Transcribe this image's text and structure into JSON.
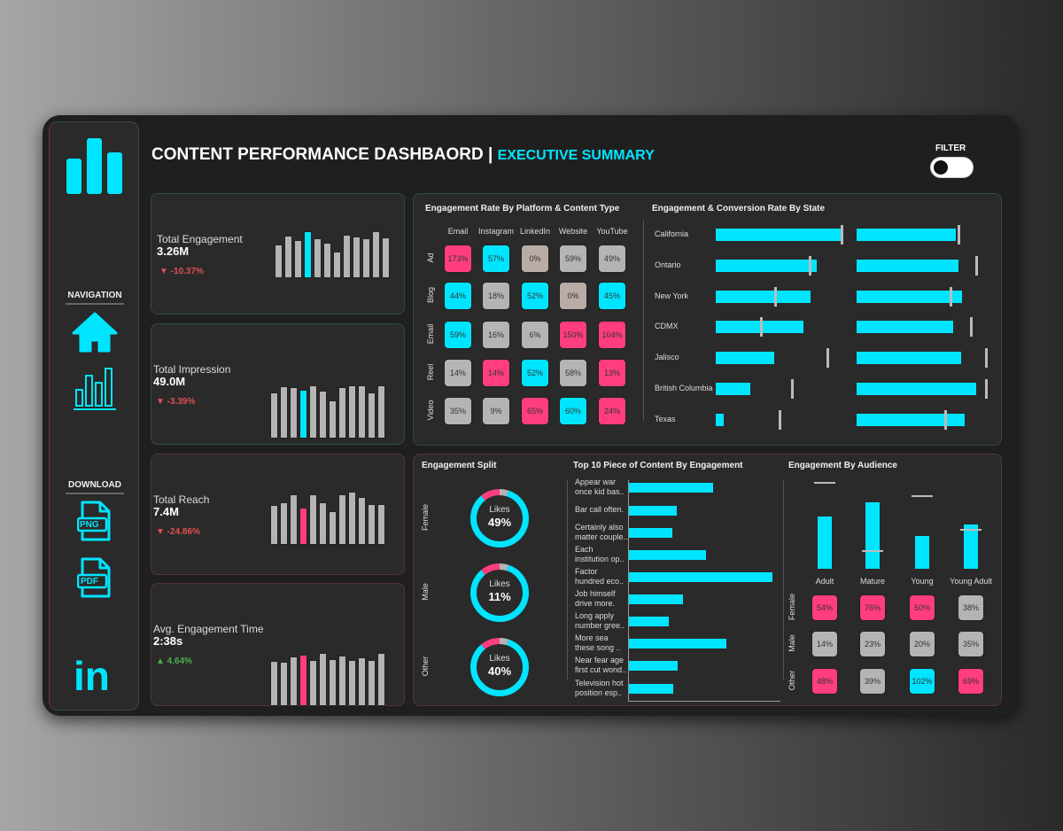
{
  "header": {
    "title": "CONTENT PERFORMANCE DASHBAORD |",
    "subtitle": "EXECUTIVE SUMMARY",
    "filter_label": "FILTER",
    "filter_on": false
  },
  "colors": {
    "accent": "#00e5ff",
    "pink": "#ff3d7f",
    "gray": "#b4b4b4",
    "taupe": "#b9aca6",
    "negative": "#e05050",
    "positive": "#4caf50"
  },
  "sidebar": {
    "logo": "bar-chart-logo-icon",
    "navigation_label": "NAVIGATION",
    "nav_items": [
      {
        "icon": "home-icon"
      },
      {
        "icon": "bar-chart-icon"
      }
    ],
    "download_label": "DOWNLOAD",
    "downloads": [
      {
        "icon": "png-file-icon",
        "label": "PNG"
      },
      {
        "icon": "pdf-file-icon",
        "label": "PDF"
      }
    ],
    "social": {
      "icon": "linkedin-icon",
      "label": "in"
    }
  },
  "kpis": [
    {
      "label": "Total Engagement",
      "value": "3.26M",
      "delta": "▼ -10.37%",
      "trend": "down",
      "highlight": "cyan",
      "bars": [
        115,
        145,
        130,
        158,
        135,
        119,
        89,
        147,
        142,
        135,
        158,
        137
      ],
      "highlight_index": 3
    },
    {
      "label": "Total Impression",
      "value": "49.0M",
      "delta": "▼ -3.39%",
      "trend": "down",
      "highlight": "cyan",
      "bars": [
        156,
        176,
        173,
        166,
        181,
        161,
        128,
        173,
        181,
        181,
        156,
        181
      ],
      "highlight_index": 3
    },
    {
      "label": "Total Reach",
      "value": "7.4M",
      "delta": "▼ -24.86%",
      "trend": "down",
      "highlight": "pink",
      "bars": [
        135,
        145,
        170,
        127,
        170,
        145,
        115,
        170,
        180,
        162,
        139,
        139
      ],
      "highlight_index": 3
    },
    {
      "label": "Avg. Engagement Time",
      "value": "2:38s",
      "delta": "▲ 4.64%",
      "trend": "up",
      "highlight": "pink",
      "bars": [
        152,
        149,
        167,
        174,
        157,
        179,
        159,
        170,
        157,
        164,
        157,
        181
      ],
      "highlight_index": 3
    }
  ],
  "platform_heatmap": {
    "title": "Engagement Rate By Platform & Content Type",
    "columns": [
      "Email",
      "Instagram",
      "LinkedIn",
      "Website",
      "YouTube"
    ],
    "rows": [
      {
        "label": "Ad",
        "cells": [
          {
            "v": "173%",
            "c": "pink"
          },
          {
            "v": "57%",
            "c": "cyan"
          },
          {
            "v": "0%",
            "c": "taupe"
          },
          {
            "v": "59%",
            "c": "gray"
          },
          {
            "v": "49%",
            "c": "gray"
          }
        ]
      },
      {
        "label": "Blog",
        "cells": [
          {
            "v": "44%",
            "c": "cyan"
          },
          {
            "v": "18%",
            "c": "gray"
          },
          {
            "v": "52%",
            "c": "cyan"
          },
          {
            "v": "0%",
            "c": "taupe"
          },
          {
            "v": "45%",
            "c": "cyan"
          }
        ]
      },
      {
        "label": "Email",
        "cells": [
          {
            "v": "59%",
            "c": "cyan"
          },
          {
            "v": "16%",
            "c": "gray"
          },
          {
            "v": "6%",
            "c": "gray"
          },
          {
            "v": "150%",
            "c": "pink"
          },
          {
            "v": "104%",
            "c": "pink"
          }
        ]
      },
      {
        "label": "Reel",
        "cells": [
          {
            "v": "14%",
            "c": "gray"
          },
          {
            "v": "14%",
            "c": "pink"
          },
          {
            "v": "52%",
            "c": "cyan"
          },
          {
            "v": "58%",
            "c": "gray"
          },
          {
            "v": "13%",
            "c": "pink"
          }
        ]
      },
      {
        "label": "Video",
        "cells": [
          {
            "v": "35%",
            "c": "gray"
          },
          {
            "v": "9%",
            "c": "gray"
          },
          {
            "v": "65%",
            "c": "pink"
          },
          {
            "v": "60%",
            "c": "cyan"
          },
          {
            "v": "24%",
            "c": "pink"
          }
        ]
      }
    ]
  },
  "state_chart": {
    "title": "Engagement & Conversion Rate By State",
    "rows": [
      {
        "state": "California",
        "eng": 99,
        "eng_target": 99,
        "conv": 76,
        "conv_target": 78
      },
      {
        "state": "Ontario",
        "eng": 80,
        "eng_target": 74,
        "conv": 78,
        "conv_target": 92
      },
      {
        "state": "New York",
        "eng": 75,
        "eng_target": 47,
        "conv": 81,
        "conv_target": 72
      },
      {
        "state": "CDMX",
        "eng": 69,
        "eng_target": 36,
        "conv": 74,
        "conv_target": 88
      },
      {
        "state": "Jalisco",
        "eng": 46,
        "eng_target": 88,
        "conv": 80,
        "conv_target": 99
      },
      {
        "state": "British Columbia",
        "eng": 27,
        "eng_target": 60,
        "conv": 92,
        "conv_target": 99
      },
      {
        "state": "Texas",
        "eng": 6,
        "eng_target": 50,
        "conv": 83,
        "conv_target": 68
      }
    ]
  },
  "engagement_split": {
    "title": "Engagement Split",
    "rows": [
      {
        "label": "Female",
        "metric": "Likes",
        "value": "49%",
        "segments": {
          "gray": 5,
          "cyan": 84,
          "pink": 11
        }
      },
      {
        "label": "Male",
        "metric": "Likes",
        "value": "11%",
        "segments": {
          "gray": 5,
          "cyan": 84,
          "pink": 11
        }
      },
      {
        "label": "Other",
        "metric": "Likes",
        "value": "40%",
        "segments": {
          "gray": 5,
          "cyan": 84,
          "pink": 11
        }
      }
    ]
  },
  "top_content": {
    "title": "Top 10 Piece of Content By Engagement",
    "items": [
      {
        "line1": "Appear war",
        "line2": "once kid bas..",
        "value": 286
      },
      {
        "line1": "Bar call often.",
        "line2": "",
        "value": 162
      },
      {
        "line1": "Certainly also",
        "line2": "matter couple..",
        "value": 146
      },
      {
        "line1": "Each",
        "line2": "institution op..",
        "value": 261
      },
      {
        "line1": "Factor",
        "line2": "hundred eco..",
        "value": 487
      },
      {
        "line1": "Job himself",
        "line2": "drive more.",
        "value": 184
      },
      {
        "line1": "Long apply",
        "line2": "number gree..",
        "value": 134
      },
      {
        "line1": "More sea",
        "line2": "these song ..",
        "value": 332
      },
      {
        "line1": "Near fear age",
        "line2": "first cut wond..",
        "value": 166
      },
      {
        "line1": "Television hot",
        "line2": "position esp..",
        "value": 149
      }
    ]
  },
  "audience": {
    "title": "Engagement By Audience",
    "groups": [
      {
        "label": "Adult",
        "value": 178,
        "target": 292
      },
      {
        "label": "Mature",
        "value": 224,
        "target": 60
      },
      {
        "label": "Young",
        "value": 112,
        "target": 247
      },
      {
        "label": "Young Adult",
        "value": 150,
        "target": 132
      }
    ],
    "rows": [
      {
        "label": "Female",
        "cells": [
          {
            "v": "54%",
            "c": "pink"
          },
          {
            "v": "76%",
            "c": "pink"
          },
          {
            "v": "50%",
            "c": "pink"
          },
          {
            "v": "38%",
            "c": "gray"
          }
        ]
      },
      {
        "label": "Male",
        "cells": [
          {
            "v": "14%",
            "c": "gray"
          },
          {
            "v": "23%",
            "c": "gray"
          },
          {
            "v": "20%",
            "c": "gray"
          },
          {
            "v": "35%",
            "c": "gray"
          }
        ]
      },
      {
        "label": "Other",
        "cells": [
          {
            "v": "48%",
            "c": "pink"
          },
          {
            "v": "39%",
            "c": "gray"
          },
          {
            "v": "102%",
            "c": "cyan"
          },
          {
            "v": "69%",
            "c": "pink"
          }
        ]
      }
    ]
  }
}
